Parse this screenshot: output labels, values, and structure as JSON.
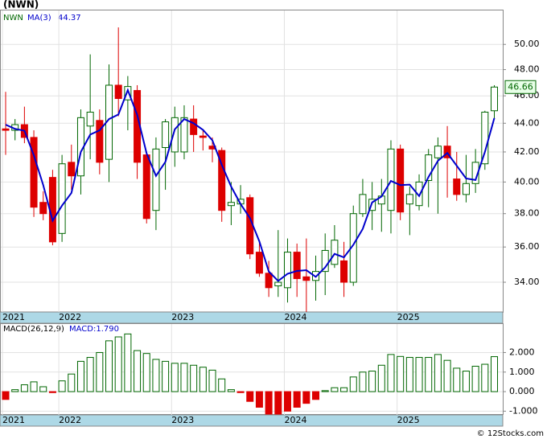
{
  "chart_data": [
    {
      "type": "candlestick",
      "title": "(NWN)",
      "categories": [
        "2021",
        null,
        null,
        null,
        null,
        null,
        "2022",
        null,
        null,
        null,
        null,
        null,
        null,
        null,
        null,
        null,
        null,
        null,
        "2023",
        null,
        null,
        null,
        null,
        null,
        null,
        null,
        null,
        null,
        null,
        null,
        "2024",
        null,
        null,
        null,
        null,
        null,
        null,
        null,
        null,
        null,
        null,
        null,
        "2025",
        null,
        null,
        null,
        null,
        null,
        null,
        null,
        null,
        null,
        null
      ],
      "series": [
        {
          "name": "NWN",
          "up_color": "#006600",
          "down_color": "#dd0000",
          "open": [
            43.6,
            43.5,
            43.9,
            43.0,
            38.7,
            40.3,
            36.8,
            41.3,
            40.4,
            43.8,
            44.2,
            41.5,
            46.8,
            45.7,
            46.4,
            41.8,
            38.2,
            42.3,
            42.0,
            42.0,
            44.3,
            43.1,
            42.4,
            42.1,
            38.5,
            38.6,
            39.0,
            35.7,
            34.5,
            33.8,
            33.7,
            35.7,
            34.3,
            34.1,
            34.6,
            35.0,
            35.2,
            34.0,
            38.0,
            38.2,
            38.6,
            38.2,
            42.2,
            38.6,
            38.5,
            40.1,
            41.6,
            42.4,
            40.2,
            39.2,
            39.9,
            41.2,
            44.9
          ],
          "high": [
            46.3,
            44.3,
            45.2,
            43.5,
            39.4,
            40.8,
            41.8,
            42.5,
            45.0,
            49.2,
            45.0,
            48.4,
            51.4,
            47.5,
            46.8,
            42.0,
            43.0,
            44.3,
            45.2,
            45.3,
            45.3,
            43.5,
            43.0,
            42.3,
            40.0,
            39.8,
            39.2,
            36.4,
            35.2,
            37.0,
            36.5,
            36.2,
            36.5,
            35.5,
            36.8,
            37.3,
            36.3,
            38.5,
            40.2,
            40.0,
            40.2,
            42.8,
            42.5,
            39.7,
            40.5,
            42.2,
            43.0,
            43.8,
            42.0,
            41.8,
            42.2,
            44.9,
            46.8
          ],
          "low": [
            41.8,
            42.8,
            42.6,
            37.8,
            37.6,
            36.1,
            36.3,
            39.5,
            39.2,
            41.5,
            40.5,
            40.0,
            44.5,
            43.5,
            40.2,
            37.4,
            37.0,
            39.5,
            41.0,
            41.5,
            42.0,
            42.1,
            41.3,
            37.5,
            37.3,
            38.0,
            35.3,
            34.3,
            33.2,
            33.2,
            32.9,
            33.2,
            32.4,
            33.0,
            33.3,
            34.8,
            33.2,
            33.8,
            37.8,
            37.0,
            36.9,
            36.8,
            37.6,
            36.7,
            38.2,
            38.4,
            38.0,
            39.0,
            38.8,
            38.7,
            39.3,
            40.8,
            44.3
          ],
          "close": [
            43.5,
            43.9,
            43.0,
            38.4,
            38.0,
            36.3,
            41.2,
            40.4,
            44.4,
            44.8,
            41.3,
            46.8,
            45.8,
            46.7,
            41.3,
            37.7,
            42.2,
            44.1,
            44.4,
            44.4,
            43.2,
            43.0,
            42.2,
            38.2,
            38.7,
            38.9,
            35.6,
            34.5,
            33.7,
            34.0,
            35.7,
            34.2,
            34.1,
            34.6,
            35.8,
            36.4,
            34.0,
            38.0,
            39.2,
            38.9,
            39.1,
            42.2,
            38.1,
            39.2,
            40.0,
            41.8,
            42.4,
            41.6,
            39.2,
            39.9,
            41.3,
            44.8,
            46.66
          ]
        },
        {
          "name": "MA(3)",
          "color": "#0000cc",
          "values": [
            43.9,
            43.6,
            43.47,
            41.77,
            39.8,
            37.57,
            38.5,
            39.3,
            42.0,
            43.2,
            43.5,
            44.3,
            44.63,
            46.43,
            44.6,
            41.9,
            40.4,
            41.33,
            43.57,
            44.3,
            44.0,
            43.53,
            42.8,
            41.13,
            39.7,
            38.6,
            37.73,
            36.33,
            34.6,
            34.07,
            34.47,
            34.63,
            34.67,
            34.3,
            34.83,
            35.6,
            35.4,
            36.13,
            37.07,
            38.7,
            39.07,
            40.07,
            39.8,
            39.83,
            39.1,
            40.33,
            41.4,
            41.93,
            41.07,
            40.23,
            40.13,
            42.0,
            44.37
          ]
        }
      ],
      "last_label_color": "#006600",
      "log_scale": true,
      "grid": true,
      "ylim": [
        32.4,
        52.9
      ],
      "yticks": [
        {
          "value": 34,
          "label": "34.00"
        },
        {
          "value": 36,
          "label": "36.00"
        },
        {
          "value": 38,
          "label": "38.00"
        },
        {
          "value": 40,
          "label": "40.00"
        },
        {
          "value": 42,
          "label": "42.00"
        },
        {
          "value": 44,
          "label": "44.00"
        },
        {
          "value": 46,
          "label": "46.00"
        },
        {
          "value": 48,
          "label": "48.00"
        },
        {
          "value": 50,
          "label": "50.00"
        }
      ]
    },
    {
      "type": "bar",
      "categories": [
        "2021",
        null,
        null,
        null,
        null,
        null,
        "2022",
        null,
        null,
        null,
        null,
        null,
        null,
        null,
        null,
        null,
        null,
        null,
        "2023",
        null,
        null,
        null,
        null,
        null,
        null,
        null,
        null,
        null,
        null,
        null,
        "2024",
        null,
        null,
        null,
        null,
        null,
        null,
        null,
        null,
        null,
        null,
        null,
        "2025",
        null,
        null,
        null,
        null,
        null,
        null,
        null,
        null,
        null,
        null
      ],
      "series": [
        {
          "name": "MACD(26,12,9)",
          "readout": "MACD:1.790",
          "up_color": "#006600",
          "down_color": "#dd0000",
          "values": [
            -0.4,
            0.1,
            0.35,
            0.5,
            0.25,
            -0.05,
            0.55,
            0.9,
            1.55,
            1.75,
            2.0,
            2.6,
            2.8,
            2.95,
            2.1,
            1.95,
            1.65,
            1.55,
            1.45,
            1.45,
            1.35,
            1.25,
            1.1,
            0.65,
            0.1,
            -0.05,
            -0.5,
            -0.8,
            -1.15,
            -1.15,
            -1.0,
            -0.8,
            -0.6,
            -0.4,
            0.05,
            0.2,
            0.2,
            0.75,
            1.0,
            1.05,
            1.35,
            1.9,
            1.8,
            1.75,
            1.75,
            1.75,
            1.9,
            1.6,
            1.2,
            1.05,
            1.3,
            1.4,
            1.79
          ]
        }
      ],
      "grid": true,
      "ylim": [
        -1.19,
        3.5
      ],
      "yticks": [
        {
          "value": -1,
          "label": "-1.000"
        },
        {
          "value": 0,
          "label": "0.000"
        },
        {
          "value": 1,
          "label": "1.000"
        },
        {
          "value": 2,
          "label": "2.000"
        }
      ]
    }
  ],
  "footer": "© 12Stocks.com"
}
